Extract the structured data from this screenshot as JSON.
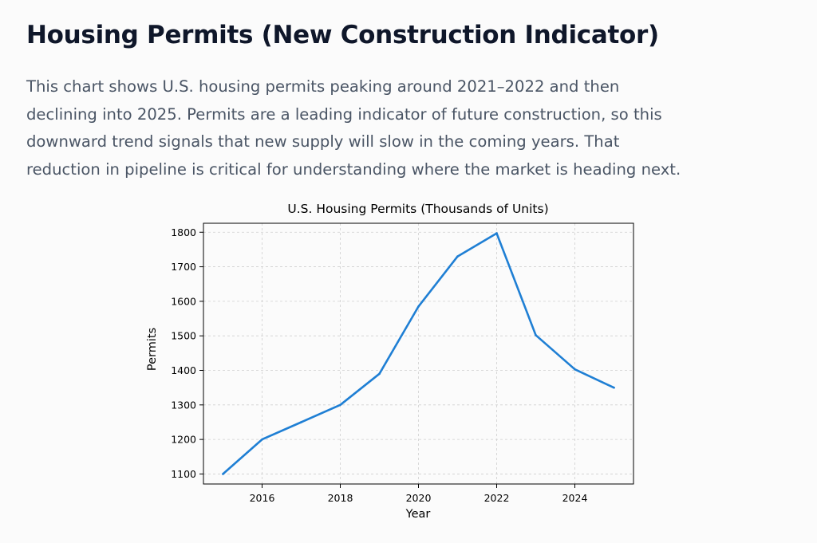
{
  "page": {
    "title": "Housing Permits (New Construction Indicator)",
    "description_lines": [
      "This chart shows U.S. housing permits peaking around 2021–2022 and then",
      "declining into 2025. Permits are a leading indicator of future construction, so this",
      "downward trend signals that new supply will slow in the coming years. That",
      "reduction in pipeline is critical for understanding where the market is heading next."
    ]
  },
  "chart_data": {
    "type": "line",
    "title": "U.S. Housing Permits (Thousands of Units)",
    "xlabel": "Year",
    "ylabel": "Permits",
    "x": [
      2015,
      2016,
      2017,
      2018,
      2019,
      2020,
      2021,
      2022,
      2023,
      2024,
      2025
    ],
    "series": [
      {
        "values": [
          1100,
          1200,
          1250,
          1300,
          1390,
          1585,
          1730,
          1797,
          1502,
          1403,
          1350
        ],
        "color": "#1f7fd4"
      }
    ],
    "xlim": [
      2014.5,
      2025.5
    ],
    "ylim": [
      1071,
      1826
    ],
    "xticks": [
      2016,
      2018,
      2020,
      2022,
      2024
    ],
    "yticks": [
      1100,
      1200,
      1300,
      1400,
      1500,
      1600,
      1700,
      1800
    ],
    "grid": true,
    "grid_style": "dashed"
  }
}
